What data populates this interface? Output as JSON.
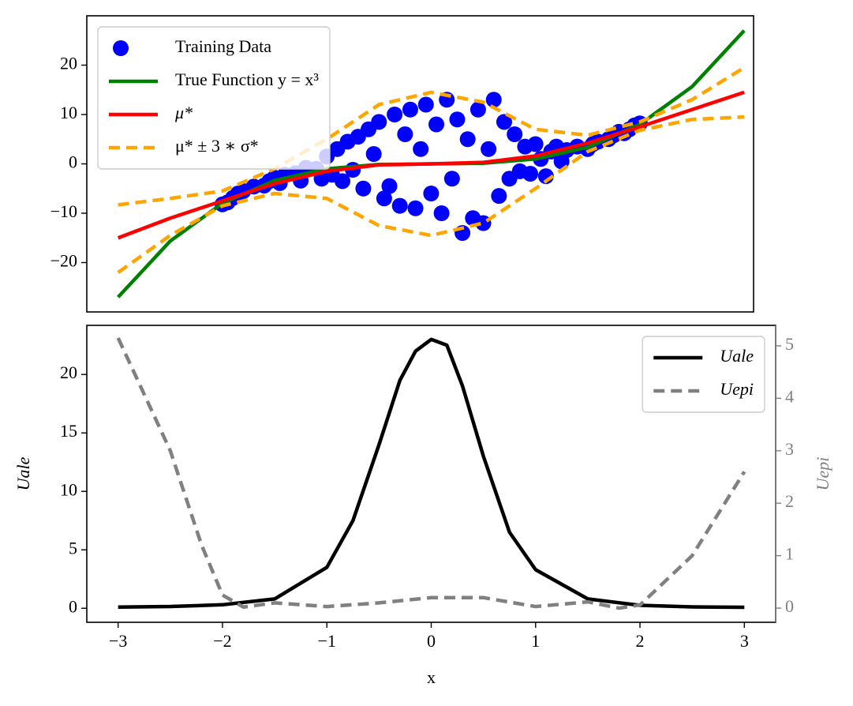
{
  "chart_data": [
    {
      "type": "scatter",
      "xlim": [
        -3.3,
        3.09
      ],
      "ylim": [
        -30,
        30
      ],
      "yticks": [
        {
          "value": -20,
          "label": "−20"
        },
        {
          "value": -10,
          "label": "−10"
        },
        0,
        10,
        20
      ],
      "legend": "upper left",
      "series": [
        {
          "name": "Training Data",
          "color": "#0000ff",
          "marker": "circle",
          "x": [
            -2.0,
            -1.95,
            -1.9,
            -1.85,
            -1.8,
            -1.7,
            -1.6,
            -1.55,
            -1.5,
            -1.45,
            -1.4,
            -1.3,
            -1.25,
            -1.2,
            -1.1,
            -1.05,
            -1.0,
            -0.95,
            -0.9,
            -0.85,
            -0.8,
            -0.75,
            -0.7,
            -0.65,
            -0.6,
            -0.55,
            -0.5,
            -0.45,
            -0.4,
            -0.35,
            -0.3,
            -0.25,
            -0.2,
            -0.15,
            -0.1,
            -0.05,
            0.0,
            0.05,
            0.1,
            0.15,
            0.2,
            0.25,
            0.3,
            0.35,
            0.4,
            0.45,
            0.5,
            0.55,
            0.6,
            0.65,
            0.7,
            0.75,
            0.8,
            0.85,
            0.9,
            0.95,
            1.0,
            1.05,
            1.1,
            1.15,
            1.2,
            1.25,
            1.3,
            1.4,
            1.5,
            1.55,
            1.6,
            1.7,
            1.75,
            1.8,
            1.85,
            1.9,
            1.95,
            2.0
          ],
          "values": [
            -8.2,
            -7.8,
            -6.9,
            -6.0,
            -5.5,
            -4.6,
            -4.4,
            -3.5,
            -2.8,
            -3.9,
            -2.2,
            -1.9,
            -3.4,
            -0.8,
            -1.0,
            -3.0,
            1.5,
            -2.2,
            3.0,
            -3.5,
            4.5,
            -1.2,
            5.5,
            -5.0,
            7.0,
            2.0,
            8.5,
            -7.0,
            -4.5,
            10.0,
            -8.5,
            6.0,
            11.0,
            -9.0,
            3.0,
            12.0,
            -6.0,
            8.0,
            -10.0,
            13.0,
            -3.0,
            9.0,
            -14.0,
            5.0,
            -11.0,
            11.0,
            -12.0,
            3.0,
            13.0,
            -6.5,
            8.5,
            -3.0,
            6.0,
            -1.5,
            3.5,
            -2.0,
            4.0,
            1.0,
            -2.5,
            2.5,
            3.5,
            0.5,
            2.8,
            3.5,
            3.0,
            4.0,
            4.5,
            5.0,
            5.8,
            6.5,
            6.2,
            7.0,
            7.8,
            8.2
          ]
        },
        {
          "name": "True Function y = x³",
          "color": "#008000",
          "x": [
            -3,
            -2.5,
            -2,
            -1.5,
            -1,
            -0.5,
            0,
            0.5,
            1,
            1.5,
            2,
            2.5,
            3
          ],
          "values": [
            -27,
            -15.625,
            -8,
            -3.375,
            -1,
            -0.125,
            0,
            0.125,
            1,
            3.375,
            8,
            15.625,
            27
          ]
        },
        {
          "name": "μ*",
          "color": "#ff0000",
          "x": [
            -3,
            -2.5,
            -2,
            -1.5,
            -1,
            -0.5,
            0,
            0.5,
            1,
            1.5,
            2,
            2.5,
            3
          ],
          "values": [
            -15,
            -11,
            -7.5,
            -4,
            -1.5,
            -0.2,
            0,
            0.3,
            1.6,
            4.2,
            7.5,
            11,
            14.5
          ]
        },
        {
          "name": "μ* ± 3 ∗ σ*",
          "color": "#ffa500",
          "dash": true,
          "x": [
            -3,
            -2.5,
            -2,
            -1.5,
            -1,
            -0.5,
            0,
            0.5,
            1,
            1.5,
            2,
            2.5,
            3
          ],
          "values": [
            -8.3,
            -7,
            -5.5,
            -1,
            5,
            12,
            14.5,
            12.5,
            7,
            5.8,
            8.5,
            13,
            19.5
          ]
        },
        {
          "color": "#ffa500",
          "dash": true,
          "x": [
            -3,
            -2.5,
            -2,
            -1.5,
            -1,
            -0.5,
            0,
            0.5,
            1,
            1.5,
            2,
            2.5,
            3
          ],
          "values": [
            -22,
            -14.5,
            -8.5,
            -6,
            -7,
            -12.5,
            -14.5,
            -12,
            -5,
            2.5,
            6.8,
            9,
            9.5
          ]
        }
      ]
    },
    {
      "type": "line",
      "xlim": [
        -3.3,
        3.3
      ],
      "ylim": [
        -1.2,
        24.2
      ],
      "y2lim": [
        -0.27,
        5.39
      ],
      "xlabel": "x",
      "ylabel": "Uale",
      "y2label": "Uepi",
      "xticks": [
        {
          "value": -3,
          "label": "−3"
        },
        {
          "value": -2,
          "label": "−2"
        },
        {
          "value": -1,
          "label": "−1"
        },
        0,
        1,
        2,
        3
      ],
      "yticks": [
        0,
        5,
        10,
        15,
        20
      ],
      "y2ticks": [
        0,
        1,
        2,
        3,
        4,
        5
      ],
      "legend": "upper right",
      "series": [
        {
          "name": "Uale",
          "color": "#000000",
          "x": [
            -3,
            -2.5,
            -2,
            -1.5,
            -1,
            -0.75,
            -0.5,
            -0.3,
            -0.15,
            0,
            0.15,
            0.3,
            0.5,
            0.75,
            1,
            1.5,
            2,
            2.5,
            3
          ],
          "values": [
            0.1,
            0.15,
            0.3,
            0.8,
            3.5,
            7.5,
            14,
            19.5,
            22,
            23,
            22.5,
            19,
            13,
            6.5,
            3.3,
            0.8,
            0.25,
            0.12,
            0.08
          ]
        },
        {
          "name": "Uepi",
          "color": "#808080",
          "dash": true,
          "axis": "y2",
          "x": [
            -3,
            -2.5,
            -2.2,
            -2,
            -1.8,
            -1.5,
            -1,
            -0.5,
            0,
            0.5,
            1,
            1.5,
            1.8,
            2,
            2.5,
            3
          ],
          "values": [
            5.15,
            3.0,
            1.2,
            0.25,
            0.02,
            0.1,
            0.03,
            0.1,
            0.2,
            0.2,
            0.03,
            0.12,
            0.0,
            0.06,
            1.0,
            2.6
          ]
        }
      ]
    }
  ]
}
